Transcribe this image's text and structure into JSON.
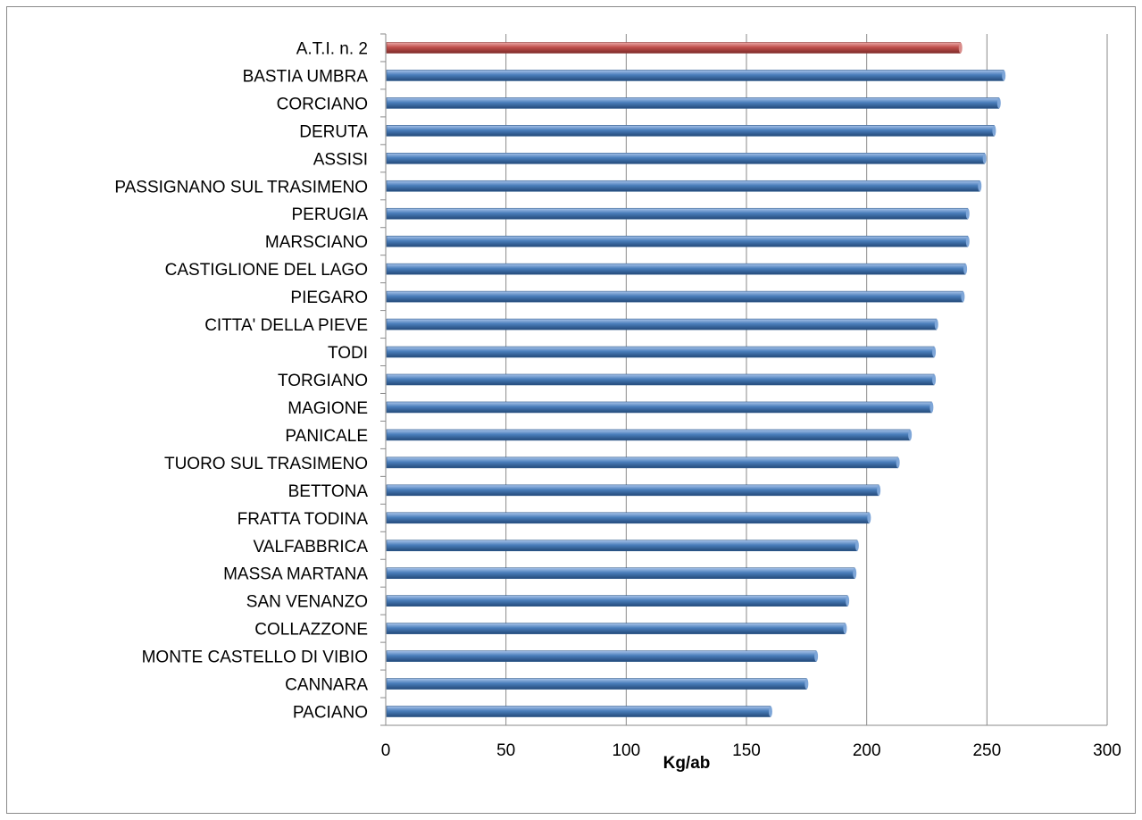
{
  "chart_data": {
    "type": "bar",
    "orientation": "horizontal",
    "categories": [
      "A.T.I. n. 2",
      "BASTIA UMBRA",
      "CORCIANO",
      "DERUTA",
      "ASSISI",
      "PASSIGNANO SUL TRASIMENO",
      "PERUGIA",
      "MARSCIANO",
      "CASTIGLIONE DEL LAGO",
      "PIEGARO",
      "CITTA' DELLA PIEVE",
      "TODI",
      "TORGIANO",
      "MAGIONE",
      "PANICALE",
      "TUORO SUL TRASIMENO",
      "BETTONA",
      "FRATTA TODINA",
      "VALFABBRICA",
      "MASSA MARTANA",
      "SAN VENANZO",
      "COLLAZZONE",
      "MONTE CASTELLO DI VIBIO",
      "CANNARA",
      "PACIANO"
    ],
    "values": [
      239,
      257,
      255,
      253,
      249,
      247,
      242,
      242,
      241,
      240,
      229,
      228,
      228,
      227,
      218,
      213,
      205,
      201,
      196,
      195,
      192,
      191,
      179,
      175,
      160
    ],
    "highlight_index": 0,
    "xlabel": "Kg/ab",
    "ylabel": "",
    "title": "",
    "xlim": [
      0,
      300
    ],
    "xticks": [
      0,
      50,
      100,
      150,
      200,
      250,
      300
    ],
    "grid": true,
    "legend": "none",
    "colors": {
      "bar": "#4a7ebb",
      "bar_highlight": "#c0504d",
      "grid": "#8a8a8a",
      "axis": "#8a8a8a",
      "frame": "#8a8a8a"
    }
  }
}
